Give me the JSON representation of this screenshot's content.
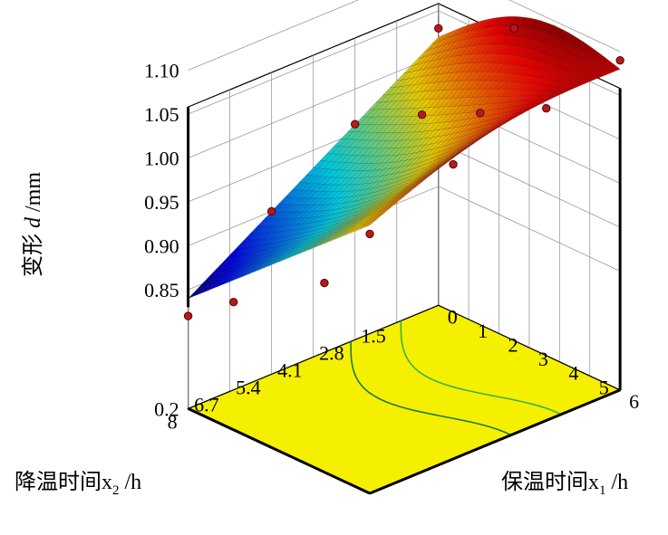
{
  "chart_data": {
    "type": "surface3d",
    "title": "",
    "zlabel": {
      "text": "变形 ",
      "var": "d",
      "unit": " /mm"
    },
    "xlabel": {
      "text": "保温时间",
      "var": "x",
      "sub": "1",
      "unit": " /h"
    },
    "ylabel": {
      "text": "降温时间",
      "var": "x",
      "sub": "2",
      "unit": " /h"
    },
    "x_ticks": [
      "0",
      "1",
      "2",
      "3",
      "4",
      "5",
      "6"
    ],
    "y_ticks": [
      "1.5",
      "2.8",
      "4.1",
      "5.4",
      "6.7",
      "8"
    ],
    "z_ticks": [
      "1.10",
      "1.05",
      "1.00",
      "0.95",
      "0.90",
      "0.85"
    ],
    "z_floor_label": "0.2",
    "xlim": [
      0,
      6
    ],
    "ylim": [
      0.2,
      8
    ],
    "zlim": [
      0.83,
      1.1
    ],
    "surface_corners": [
      {
        "x": 0,
        "y": 0.2,
        "z": 1.02
      },
      {
        "x": 6,
        "y": 0.2,
        "z": 1.08
      },
      {
        "x": 0,
        "y": 8,
        "z": 0.84
      },
      {
        "x": 6,
        "y": 8,
        "z": 1.02
      }
    ],
    "colormap": "jet",
    "floor_color": "#f5f000",
    "points": [
      {
        "x": 0,
        "y": 0.2,
        "z": 1.03
      },
      {
        "x": 6,
        "y": 0.2,
        "z": 1.09
      },
      {
        "x": 0,
        "y": 8,
        "z": 0.82
      },
      {
        "x": 6,
        "y": 8,
        "z": 1.01
      },
      {
        "x": 0,
        "y": 2.8,
        "z": 0.96
      },
      {
        "x": 0,
        "y": 5.4,
        "z": 0.9
      },
      {
        "x": 1.5,
        "y": 8,
        "z": 0.86
      },
      {
        "x": 4.5,
        "y": 8,
        "z": 0.93
      },
      {
        "x": 2.5,
        "y": 0.2,
        "z": 1.07
      },
      {
        "x": 6,
        "y": 2.5,
        "z": 1.07
      },
      {
        "x": 6,
        "y": 5.4,
        "z": 1.05
      },
      {
        "x": 2,
        "y": 2.6,
        "z": 1.0
      },
      {
        "x": 3.5,
        "y": 2.2,
        "z": 1.02
      }
    ]
  }
}
